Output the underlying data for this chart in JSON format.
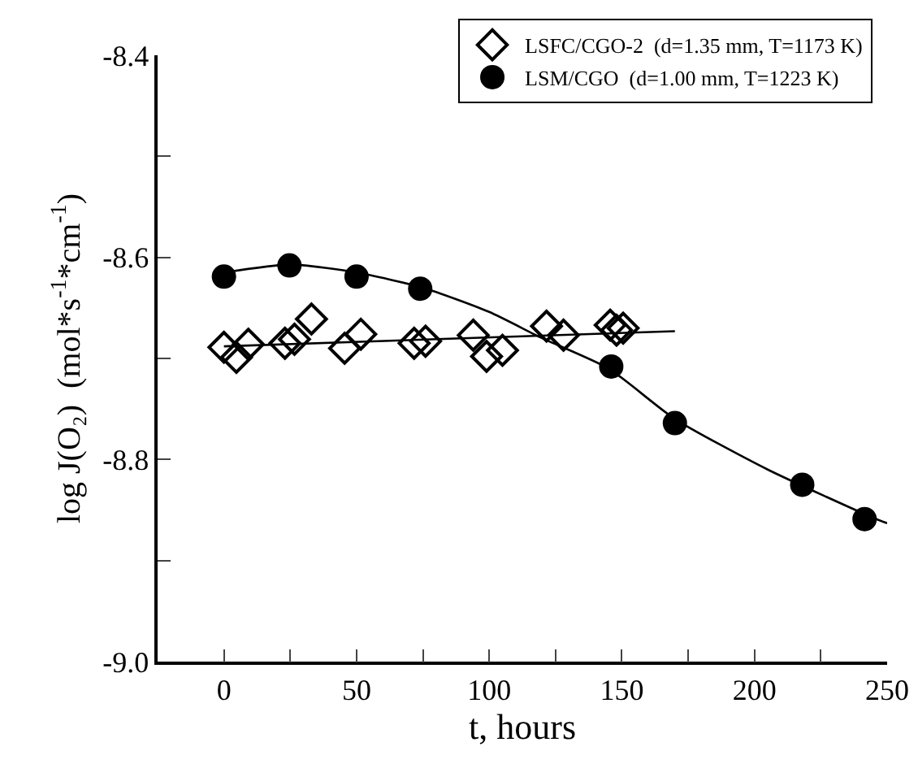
{
  "chart_data": {
    "type": "scatter",
    "xlabel": "t, hours",
    "ylabel": "log J(O₂)  (mol*s$^{-1}$*cm$^{-1}$)",
    "xlim": [
      -25,
      250
    ],
    "ylim": [
      -9.0,
      -8.4
    ],
    "xticks": [
      0,
      {
        "value": 25,
        "label": null
      },
      50,
      {
        "value": 75,
        "label": null
      },
      100,
      {
        "value": 125,
        "label": null
      },
      150,
      {
        "value": 175,
        "label": null
      },
      200,
      {
        "value": 225,
        "label": null
      },
      250
    ],
    "yticks": [
      {
        "value": -9.0,
        "label": "-9.0"
      },
      {
        "value": -8.9,
        "label": null
      },
      -8.8,
      {
        "value": -8.7,
        "label": null
      },
      -8.6,
      {
        "value": -8.5,
        "label": null
      },
      -8.4
    ],
    "grid": false,
    "legend": "top right",
    "series": [
      {
        "name": "LSFC/CGO-2  (d=1.35 mm, T=1173 K)",
        "color": "#000000",
        "marker": "diamond",
        "x": [
          0,
          4.7,
          9.2,
          23,
          26.6,
          33,
          45.5,
          51.6,
          71.7,
          76,
          94,
          99,
          105,
          121.6,
          128,
          145.6,
          148,
          150.5
        ],
        "values": [
          -8.689,
          -8.699,
          -8.686,
          -8.685,
          -8.681,
          -8.661,
          -8.69,
          -8.676,
          -8.685,
          -8.683,
          -8.677,
          -8.698,
          -8.692,
          -8.668,
          -8.677,
          -8.667,
          -8.672,
          -8.67
        ]
      },
      {
        "name": "LSM/CGO  (d=1.00 mm, T=1223 K)",
        "color": "#000000",
        "marker": "circle",
        "x": [
          0,
          24.7,
          50,
          74,
          146,
          170,
          218,
          241.5
        ],
        "values": [
          -8.619,
          -8.608,
          -8.619,
          -8.631,
          -8.708,
          -8.764,
          -8.825,
          -8.859
        ]
      },
      {
        "type": "line",
        "color": "#000000",
        "marker": "none",
        "x": [
          0,
          170
        ],
        "values": [
          -8.688,
          -8.673
        ]
      },
      {
        "type": "line",
        "color": "#000000",
        "marker": "none",
        "x": [
          0,
          25,
          50,
          75,
          100,
          120,
          145,
          170,
          205,
          245,
          250
        ],
        "values": [
          -8.615,
          -8.607,
          -8.615,
          -8.63,
          -8.654,
          -8.68,
          -8.71,
          -8.76,
          -8.81,
          -8.858,
          -8.863
        ]
      }
    ]
  }
}
